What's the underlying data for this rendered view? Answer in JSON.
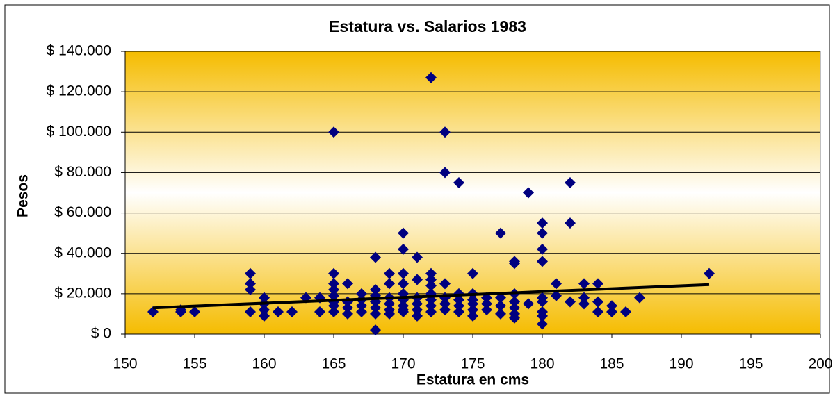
{
  "chart_data": {
    "type": "scatter",
    "title": "Estatura vs. Salarios 1983",
    "x_label": "Estatura en cms",
    "y_label": "Pesos",
    "x": [
      152,
      154,
      154,
      155,
      159,
      159,
      159,
      159,
      160,
      160,
      160,
      160,
      161,
      162,
      163,
      164,
      164,
      165,
      165,
      165,
      165,
      165,
      165,
      165,
      165,
      166,
      166,
      166,
      166,
      167,
      167,
      167,
      167,
      168,
      168,
      168,
      168,
      168,
      168,
      168,
      169,
      169,
      169,
      169,
      169,
      169,
      170,
      170,
      170,
      170,
      170,
      170,
      170,
      170,
      170,
      171,
      171,
      171,
      171,
      171,
      171,
      172,
      172,
      172,
      172,
      172,
      172,
      172,
      172,
      173,
      173,
      173,
      173,
      173,
      173,
      174,
      174,
      174,
      174,
      174,
      175,
      175,
      175,
      175,
      175,
      175,
      176,
      176,
      176,
      177,
      177,
      177,
      177,
      178,
      178,
      178,
      178,
      178,
      178,
      178,
      179,
      179,
      180,
      180,
      180,
      180,
      180,
      180,
      180,
      180,
      180,
      181,
      181,
      182,
      182,
      182,
      183,
      183,
      183,
      184,
      184,
      184,
      185,
      185,
      186,
      187,
      192
    ],
    "values": [
      11000,
      11000,
      12000,
      11000,
      30000,
      25000,
      22000,
      11000,
      18000,
      15000,
      12000,
      9000,
      11000,
      11000,
      18000,
      18000,
      11000,
      100000,
      30000,
      25000,
      22000,
      19000,
      16000,
      14000,
      11000,
      25000,
      16000,
      13000,
      10000,
      20000,
      17000,
      14000,
      11000,
      38000,
      22000,
      19000,
      16000,
      13000,
      10000,
      2000,
      30000,
      25000,
      18000,
      15000,
      12000,
      10000,
      50000,
      42000,
      30000,
      25000,
      20000,
      17000,
      14000,
      12000,
      11000,
      38000,
      27000,
      18000,
      15000,
      12000,
      9000,
      127000,
      30000,
      27000,
      24000,
      20000,
      17000,
      14000,
      11000,
      100000,
      80000,
      25000,
      18000,
      15000,
      12000,
      75000,
      20000,
      17000,
      14000,
      11000,
      30000,
      20000,
      17000,
      15000,
      12000,
      9000,
      18000,
      15000,
      12000,
      50000,
      18000,
      14000,
      10000,
      35000,
      36000,
      20000,
      16000,
      13000,
      10000,
      8000,
      70000,
      15000,
      55000,
      50000,
      42000,
      36000,
      18000,
      16000,
      11000,
      9000,
      5000,
      25000,
      19000,
      75000,
      55000,
      16000,
      25000,
      18000,
      15000,
      25000,
      16000,
      11000,
      14000,
      11000,
      11000,
      18000,
      30000
    ],
    "color": "#000080",
    "trendline": {
      "x": [
        152,
        192
      ],
      "values": [
        13000,
        24500
      ],
      "color": "#000000"
    },
    "xlim": [
      150,
      200
    ],
    "xticks": [
      150,
      155,
      160,
      165,
      170,
      175,
      180,
      185,
      190,
      195,
      200
    ],
    "ylim": [
      0,
      140000
    ],
    "yticks": [
      {
        "value": 0,
        "label": "$ 0"
      },
      {
        "value": 20000,
        "label": "$ 20.000"
      },
      {
        "value": 40000,
        "label": "$ 40.000"
      },
      {
        "value": 60000,
        "label": "$ 60.000"
      },
      {
        "value": 80000,
        "label": "$ 80.000"
      },
      {
        "value": 100000,
        "label": "$ 100.000"
      },
      {
        "value": 120000,
        "label": "$ 120.000"
      },
      {
        "value": 140000,
        "label": "$ 140.000"
      }
    ],
    "grid": true
  }
}
